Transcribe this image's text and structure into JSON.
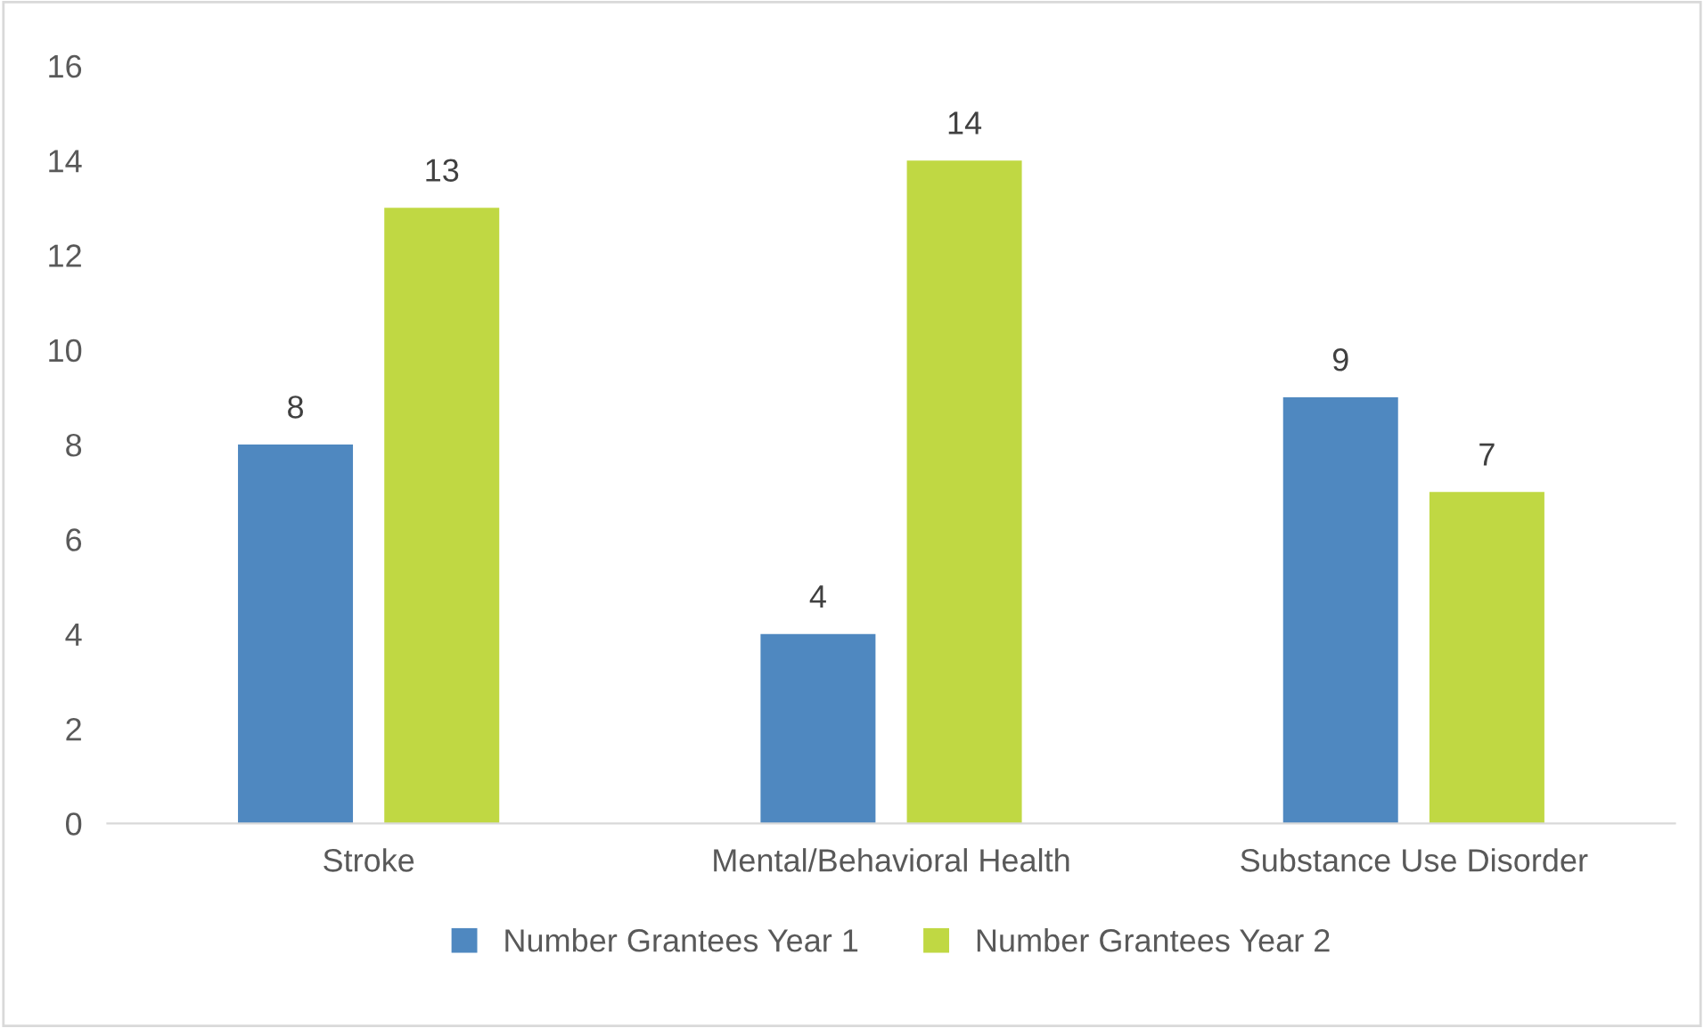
{
  "chart_data": {
    "type": "bar",
    "categories": [
      "Stroke",
      "Mental/Behavioral Health",
      "Substance Use Disorder"
    ],
    "series": [
      {
        "name": "Number Grantees Year 1",
        "color": "#4f88c0",
        "values": [
          8,
          4,
          9
        ]
      },
      {
        "name": "Number Grantees Year 2",
        "color": "#c0d843",
        "values": [
          13,
          14,
          7
        ]
      }
    ],
    "ylim": [
      0,
      16
    ],
    "yticks": [
      0,
      2,
      4,
      6,
      8,
      10,
      12,
      14,
      16
    ],
    "data_labels": true,
    "legend": "bottom",
    "grid": false
  }
}
